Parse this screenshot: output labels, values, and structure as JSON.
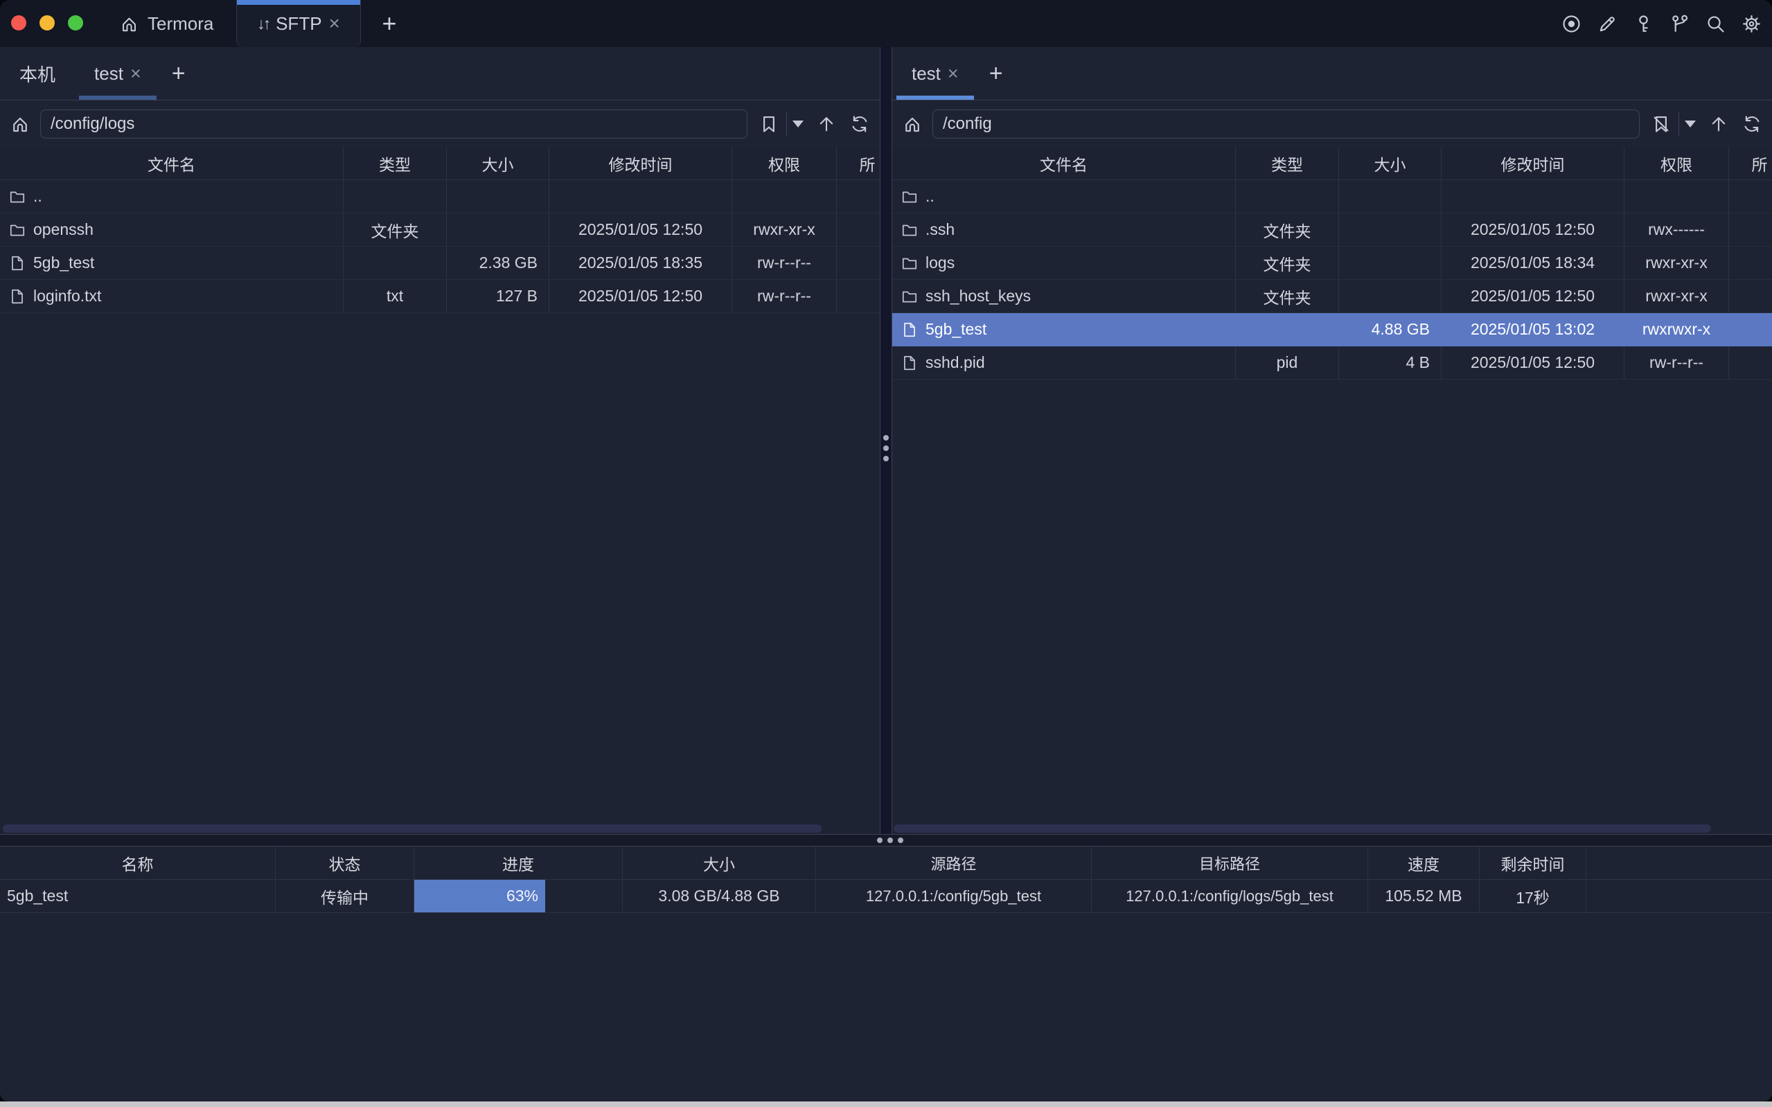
{
  "colors": {
    "window_bg": "#1e2333",
    "titlebar_bg": "#131623",
    "accent_blue": "#4e82d8",
    "selected_row": "#5c78c3",
    "progress_fill": "#5a7dc8",
    "left_tab_underline": "#3d5a8c",
    "right_tab_underline": "#5c8cd8",
    "grid_line": "#2c3147",
    "text": "#d5d8e0",
    "traffic_red": "#f45952",
    "traffic_yellow": "#f5b935",
    "traffic_green": "#4cc645"
  },
  "titlebar": {
    "app_tab": {
      "label": "Termora",
      "icon": "home-icon"
    },
    "sftp_tab": {
      "label": "SFTP",
      "icon": "transfer-arrows-icon",
      "close": "×"
    },
    "new_tab_label": "+",
    "right_icons": [
      "record-icon",
      "pencil-icon",
      "key-icon",
      "branch-icon",
      "search-icon",
      "gear-icon"
    ]
  },
  "left_pane": {
    "tabs": [
      {
        "label": "本机",
        "active": false
      },
      {
        "label": "test",
        "active": true,
        "close": "×"
      }
    ],
    "new_tab_label": "+",
    "path": "/config/logs",
    "toolbar_icons": [
      "home-icon",
      "bookmark-icon",
      "caret-down-icon",
      "arrow-up-icon",
      "refresh-icon"
    ],
    "columns": {
      "name": "文件名",
      "type": "类型",
      "size": "大小",
      "mtime": "修改时间",
      "perm": "权限",
      "owner": "所"
    },
    "rows": [
      {
        "icon": "folder",
        "name": "..",
        "type": "",
        "size": "",
        "mtime": "",
        "perm": ""
      },
      {
        "icon": "folder",
        "name": "openssh",
        "type": "文件夹",
        "size": "",
        "mtime": "2025/01/05 12:50",
        "perm": "rwxr-xr-x"
      },
      {
        "icon": "file",
        "name": "5gb_test",
        "type": "",
        "size": "2.38 GB",
        "mtime": "2025/01/05 18:35",
        "perm": "rw-r--r--"
      },
      {
        "icon": "file",
        "name": "loginfo.txt",
        "type": "txt",
        "size": "127 B",
        "mtime": "2025/01/05 12:50",
        "perm": "rw-r--r--"
      }
    ]
  },
  "right_pane": {
    "tabs": [
      {
        "label": "test",
        "active": true,
        "close": "×"
      }
    ],
    "new_tab_label": "+",
    "path": "/config",
    "toolbar_icons": [
      "home-icon",
      "bookmark-slash-icon",
      "caret-down-icon",
      "arrow-up-icon",
      "refresh-icon"
    ],
    "columns": {
      "name": "文件名",
      "type": "类型",
      "size": "大小",
      "mtime": "修改时间",
      "perm": "权限",
      "owner": "所"
    },
    "rows": [
      {
        "icon": "folder",
        "name": "..",
        "type": "",
        "size": "",
        "mtime": "",
        "perm": ""
      },
      {
        "icon": "folder",
        "name": ".ssh",
        "type": "文件夹",
        "size": "",
        "mtime": "2025/01/05 12:50",
        "perm": "rwx------"
      },
      {
        "icon": "folder",
        "name": "logs",
        "type": "文件夹",
        "size": "",
        "mtime": "2025/01/05 18:34",
        "perm": "rwxr-xr-x"
      },
      {
        "icon": "folder",
        "name": "ssh_host_keys",
        "type": "文件夹",
        "size": "",
        "mtime": "2025/01/05 12:50",
        "perm": "rwxr-xr-x"
      },
      {
        "icon": "file",
        "name": "5gb_test",
        "type": "",
        "size": "4.88 GB",
        "mtime": "2025/01/05 13:02",
        "perm": "rwxrwxr-x",
        "selected": true
      },
      {
        "icon": "file",
        "name": "sshd.pid",
        "type": "pid",
        "size": "4 B",
        "mtime": "2025/01/05 12:50",
        "perm": "rw-r--r--"
      }
    ]
  },
  "transfers": {
    "columns": {
      "name": "名称",
      "status": "状态",
      "progress": "进度",
      "size": "大小",
      "source": "源路径",
      "target": "目标路径",
      "speed": "速度",
      "remaining": "剩余时间"
    },
    "rows": [
      {
        "name": "5gb_test",
        "status": "传输中",
        "progress_label": "63%",
        "progress_pct": 63,
        "size": "3.08 GB/4.88 GB",
        "source": "127.0.0.1:/config/5gb_test",
        "target": "127.0.0.1:/config/logs/5gb_test",
        "speed": "105.52 MB",
        "remaining": "17秒"
      }
    ]
  }
}
